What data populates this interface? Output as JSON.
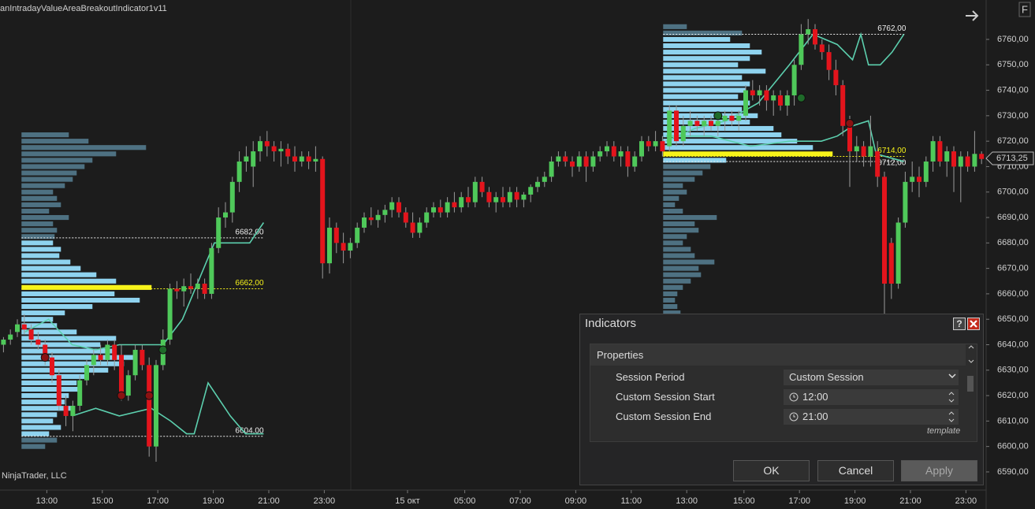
{
  "header": {
    "title": "anIntradayValueAreaBreakoutIndicator1v11",
    "watermark": "NinjaTrader, LLC",
    "corner": "F"
  },
  "chart": {
    "xlim": [
      -0.5,
      142
    ],
    "ylim": [
      6585,
      6770
    ],
    "yticks": [
      {
        "value": 6590,
        "label": "6590,00"
      },
      {
        "value": 6600,
        "label": "6600,00"
      },
      {
        "value": 6610,
        "label": "6610,00"
      },
      {
        "value": 6620,
        "label": "6620,00"
      },
      {
        "value": 6630,
        "label": "6630,00"
      },
      {
        "value": 6640,
        "label": "6640,00"
      },
      {
        "value": 6650,
        "label": "6650,00"
      },
      {
        "value": 6660,
        "label": "6660,00"
      },
      {
        "value": 6670,
        "label": "6670,00"
      },
      {
        "value": 6680,
        "label": "6680,00"
      },
      {
        "value": 6690,
        "label": "6690,00"
      },
      {
        "value": 6700,
        "label": "6700,00"
      },
      {
        "value": 6710,
        "label": "6710,00"
      },
      {
        "value": 6720,
        "label": "6720,00"
      },
      {
        "value": 6730,
        "label": "6730,00"
      },
      {
        "value": 6740,
        "label": "6740,00"
      },
      {
        "value": 6750,
        "label": "6750,00"
      },
      {
        "value": 6760,
        "label": "6760,00"
      }
    ],
    "xticks": [
      {
        "value": 6.25,
        "label": "13:00"
      },
      {
        "value": 14.25,
        "label": "15:00"
      },
      {
        "value": 22.25,
        "label": "17:00"
      },
      {
        "value": 30.25,
        "label": "19:00"
      },
      {
        "value": 38.25,
        "label": "21:00"
      },
      {
        "value": 46.25,
        "label": "23:00"
      },
      {
        "value": 58.25,
        "label": "15 окт"
      },
      {
        "value": 66.5,
        "label": "05:00"
      },
      {
        "value": 74.5,
        "label": "07:00"
      },
      {
        "value": 82.5,
        "label": "09:00"
      },
      {
        "value": 90.5,
        "label": "11:00"
      },
      {
        "value": 98.5,
        "label": "13:00"
      },
      {
        "value": 106.75,
        "label": "15:00"
      },
      {
        "value": 114.75,
        "label": "17:00"
      },
      {
        "value": 122.75,
        "label": "19:00"
      },
      {
        "value": 130.75,
        "label": "21:00"
      },
      {
        "value": 138.75,
        "label": "23:00"
      }
    ],
    "up_color": "#4fc95a",
    "down_color": "#e3141c",
    "candles": [
      [
        0,
        6640,
        6643,
        6637,
        6642
      ],
      [
        1,
        6642,
        6646,
        6640,
        6644
      ],
      [
        2,
        6645,
        6650,
        6643,
        6648
      ],
      [
        3,
        6648,
        6652,
        6644,
        6646
      ],
      [
        4,
        6646,
        6648,
        6640,
        6642
      ],
      [
        5,
        6642,
        6645,
        6638,
        6640
      ],
      [
        6,
        6640,
        6642,
        6632,
        6635
      ],
      [
        7,
        6635,
        6637,
        6625,
        6628
      ],
      [
        8,
        6628,
        6630,
        6614,
        6616
      ],
      [
        9,
        6616,
        6620,
        6608,
        6612
      ],
      [
        10,
        6612,
        6618,
        6606,
        6616
      ],
      [
        11,
        6616,
        6628,
        6614,
        6626
      ],
      [
        12,
        6626,
        6634,
        6624,
        6632
      ],
      [
        13,
        6632,
        6638,
        6628,
        6636
      ],
      [
        14,
        6636,
        6640,
        6632,
        6634
      ],
      [
        15,
        6634,
        6642,
        6632,
        6640
      ],
      [
        16,
        6640,
        6642,
        6630,
        6634
      ],
      [
        17,
        6636,
        6640,
        6618,
        6620
      ],
      [
        18,
        6620,
        6630,
        6618,
        6628
      ],
      [
        19,
        6628,
        6640,
        6626,
        6638
      ],
      [
        20,
        6638,
        6640,
        6630,
        6632
      ],
      [
        21,
        6632,
        6635,
        6596,
        6600
      ],
      [
        22,
        6600,
        6634,
        6594,
        6632
      ],
      [
        23,
        6632,
        6646,
        6630,
        6642
      ],
      [
        24,
        6642,
        6664,
        6640,
        6662
      ],
      [
        25,
        6662,
        6665,
        6658,
        6661
      ],
      [
        26,
        6661,
        6666,
        6655,
        6663
      ],
      [
        27,
        6663,
        6668,
        6660,
        6662
      ],
      [
        28,
        6662,
        6666,
        6658,
        6664
      ],
      [
        29,
        6664,
        6666,
        6658,
        6660
      ],
      [
        30,
        6660,
        6680,
        6658,
        6678
      ],
      [
        31,
        6678,
        6694,
        6676,
        6690
      ],
      [
        32,
        6690,
        6696,
        6686,
        6692
      ],
      [
        33,
        6692,
        6706,
        6688,
        6704
      ],
      [
        34,
        6704,
        6716,
        6700,
        6712
      ],
      [
        35,
        6712,
        6718,
        6708,
        6714
      ],
      [
        36,
        6710,
        6720,
        6702,
        6716
      ],
      [
        37,
        6716,
        6722,
        6712,
        6720
      ],
      [
        38,
        6720,
        6724,
        6714,
        6718
      ],
      [
        39,
        6718,
        6720,
        6712,
        6716
      ],
      [
        40,
        6716,
        6720,
        6710,
        6717
      ],
      [
        41,
        6717,
        6719,
        6711,
        6714
      ],
      [
        42,
        6714,
        6718,
        6708,
        6712
      ],
      [
        43,
        6712,
        6716,
        6710,
        6714
      ],
      [
        44,
        6714,
        6716,
        6709,
        6712
      ],
      [
        45,
        6712,
        6718,
        6708,
        6713
      ],
      [
        46,
        6713,
        6714,
        6666,
        6672
      ],
      [
        47,
        6672,
        6690,
        6668,
        6686
      ],
      [
        48,
        6686,
        6688,
        6676,
        6680
      ],
      [
        49,
        6680,
        6684,
        6672,
        6677
      ],
      [
        50,
        6677,
        6682,
        6674,
        6680
      ],
      [
        51,
        6680,
        6688,
        6678,
        6686
      ],
      [
        52,
        6686,
        6692,
        6684,
        6690
      ],
      [
        53,
        6690,
        6694,
        6687,
        6689
      ],
      [
        54,
        6689,
        6693,
        6686,
        6691
      ],
      [
        55,
        6691,
        6695,
        6688,
        6693
      ],
      [
        56,
        6693,
        6698,
        6690,
        6696
      ],
      [
        57,
        6696,
        6698,
        6690,
        6692
      ],
      [
        58,
        6692,
        6694,
        6686,
        6688
      ],
      [
        59,
        6688,
        6692,
        6682,
        6684
      ],
      [
        60,
        6684,
        6690,
        6682,
        6688
      ],
      [
        61,
        6688,
        6694,
        6686,
        6692
      ],
      [
        62,
        6692,
        6696,
        6690,
        6694
      ],
      [
        63,
        6694,
        6697,
        6690,
        6692
      ],
      [
        64,
        6692,
        6698,
        6690,
        6696
      ],
      [
        65,
        6696,
        6700,
        6692,
        6694
      ],
      [
        66,
        6694,
        6700,
        6692,
        6698
      ],
      [
        67,
        6698,
        6702,
        6694,
        6696
      ],
      [
        68,
        6696,
        6706,
        6694,
        6704
      ],
      [
        69,
        6704,
        6706,
        6698,
        6700
      ],
      [
        70,
        6700,
        6702,
        6694,
        6696
      ],
      [
        71,
        6696,
        6700,
        6692,
        6698
      ],
      [
        72,
        6698,
        6702,
        6694,
        6696
      ],
      [
        73,
        6696,
        6702,
        6694,
        6700
      ],
      [
        74,
        6700,
        6702,
        6694,
        6697
      ],
      [
        75,
        6697,
        6700,
        6694,
        6699
      ],
      [
        76,
        6699,
        6703,
        6696,
        6702
      ],
      [
        77,
        6702,
        6706,
        6700,
        6704
      ],
      [
        78,
        6704,
        6708,
        6702,
        6706
      ],
      [
        79,
        6706,
        6714,
        6704,
        6712
      ],
      [
        80,
        6712,
        6716,
        6710,
        6714
      ],
      [
        81,
        6714,
        6716,
        6710,
        6712
      ],
      [
        82,
        6712,
        6714,
        6706,
        6710
      ],
      [
        83,
        6710,
        6716,
        6708,
        6714
      ],
      [
        84,
        6714,
        6716,
        6704,
        6710
      ],
      [
        85,
        6710,
        6716,
        6708,
        6714
      ],
      [
        86,
        6714,
        6718,
        6712,
        6716
      ],
      [
        87,
        6716,
        6720,
        6714,
        6718
      ],
      [
        88,
        6718,
        6720,
        6712,
        6714
      ],
      [
        89,
        6714,
        6718,
        6710,
        6716
      ],
      [
        90,
        6716,
        6718,
        6706,
        6710
      ],
      [
        91,
        6710,
        6716,
        6708,
        6714
      ],
      [
        92,
        6714,
        6722,
        6712,
        6720
      ],
      [
        93,
        6720,
        6722,
        6716,
        6718
      ],
      [
        94,
        6718,
        6724,
        6716,
        6720
      ],
      [
        95,
        6720,
        6722,
        6714,
        6716
      ],
      [
        96,
        6718,
        6734,
        6716,
        6732
      ],
      [
        97,
        6732,
        6734,
        6718,
        6720
      ],
      [
        98,
        6720,
        6730,
        6718,
        6726
      ],
      [
        99,
        6726,
        6732,
        6722,
        6728
      ],
      [
        100,
        6728,
        6730,
        6724,
        6726
      ],
      [
        101,
        6726,
        6730,
        6722,
        6728
      ],
      [
        102,
        6728,
        6730,
        6724,
        6726
      ],
      [
        103,
        6726,
        6730,
        6722,
        6728
      ],
      [
        104,
        6728,
        6732,
        6724,
        6730
      ],
      [
        105,
        6730,
        6732,
        6726,
        6728
      ],
      [
        106,
        6728,
        6732,
        6724,
        6730
      ],
      [
        107,
        6730,
        6742,
        6728,
        6740
      ],
      [
        108,
        6740,
        6744,
        6736,
        6738
      ],
      [
        109,
        6738,
        6742,
        6734,
        6740
      ],
      [
        110,
        6740,
        6742,
        6732,
        6736
      ],
      [
        111,
        6736,
        6740,
        6730,
        6738
      ],
      [
        112,
        6738,
        6740,
        6732,
        6734
      ],
      [
        113,
        6734,
        6740,
        6730,
        6738
      ],
      [
        114,
        6738,
        6752,
        6734,
        6750
      ],
      [
        115,
        6750,
        6766,
        6748,
        6762
      ],
      [
        116,
        6762,
        6768,
        6758,
        6764
      ],
      [
        117,
        6764,
        6766,
        6756,
        6758
      ],
      [
        118,
        6758,
        6760,
        6752,
        6755
      ],
      [
        119,
        6755,
        6758,
        6744,
        6748
      ],
      [
        120,
        6748,
        6752,
        6738,
        6742
      ],
      [
        121,
        6742,
        6744,
        6722,
        6726
      ],
      [
        122,
        6726,
        6730,
        6702,
        6716
      ],
      [
        123,
        6716,
        6722,
        6712,
        6718
      ],
      [
        124,
        6718,
        6720,
        6710,
        6714
      ],
      [
        125,
        6714,
        6730,
        6710,
        6718
      ],
      [
        126,
        6716,
        6720,
        6702,
        6706
      ],
      [
        127,
        6706,
        6708,
        6652,
        6664
      ],
      [
        128,
        6680,
        6682,
        6658,
        6664
      ],
      [
        129,
        6664,
        6690,
        6662,
        6688
      ],
      [
        130,
        6688,
        6708,
        6686,
        6704
      ],
      [
        131,
        6704,
        6712,
        6700,
        6706
      ],
      [
        132,
        6706,
        6710,
        6698,
        6704
      ],
      [
        133,
        6704,
        6714,
        6702,
        6712
      ],
      [
        134,
        6712,
        6722,
        6708,
        6720
      ],
      [
        135,
        6720,
        6722,
        6710,
        6712
      ],
      [
        136,
        6712,
        6718,
        6706,
        6716
      ],
      [
        137,
        6716,
        6718,
        6700,
        6710
      ],
      [
        138,
        6710,
        6716,
        6696,
        6714
      ],
      [
        139,
        6714,
        6716,
        6708,
        6710
      ],
      [
        140,
        6710,
        6724,
        6708,
        6715
      ],
      [
        141,
        6715,
        6716,
        6711,
        6713
      ]
    ],
    "profiles": [
      {
        "x": 2.6,
        "end": 37.5,
        "top": 6722.5,
        "step": 2.5,
        "va_color": "#8fd3ef",
        "out_color": "#4e7182",
        "poc_color": "#f7f31a",
        "vah": {
          "value": 6682,
          "label": "6682,00"
        },
        "poc": {
          "value": 6662,
          "label": "6662,00"
        },
        "val": {
          "value": 6604,
          "label": "6604,00"
        },
        "volumes": [
          60,
          85,
          158,
          120,
          90,
          80,
          70,
          65,
          55,
          40,
          45,
          50,
          35,
          60,
          40,
          45,
          42,
          40,
          50,
          48,
          62,
          75,
          95,
          120,
          165,
          118,
          150,
          90,
          55,
          40,
          45,
          70,
          120,
          100,
          120,
          145,
          130,
          110,
          80,
          70,
          75,
          60,
          55,
          65,
          45,
          40,
          50,
          35,
          45,
          30
        ]
      },
      {
        "x": 95.1,
        "end": 130.1,
        "top": 6765,
        "step": 2.5,
        "va_color": "#8fd3ef",
        "out_color": "#4e7182",
        "poc_color": "#f7f31a",
        "vah": {
          "value": 6762,
          "label": "6762,00"
        },
        "poc": {
          "value": 6714,
          "label": "6714,00"
        },
        "val": {
          "value": 6712,
          "label": "6712,00"
        },
        "volumes": [
          30,
          100,
          85,
          110,
          125,
          110,
          95,
          130,
          100,
          110,
          105,
          95,
          110,
          100,
          120,
          110,
          140,
          150,
          170,
          190,
          215,
          80,
          60,
          50,
          40,
          25,
          30,
          20,
          15,
          25,
          68,
          40,
          45,
          30,
          25,
          35,
          40,
          65,
          45,
          48,
          35,
          25,
          18,
          15,
          18,
          22,
          20
        ]
      }
    ],
    "lines": [
      {
        "color": "#5ccfae",
        "x": [
          3.1,
          6.5,
          9.9,
          13.3,
          16.7,
          20.2,
          23,
          25.8,
          28.1,
          30.4,
          35.5,
          37.5
        ],
        "values": [
          6645,
          6650,
          6640,
          6638,
          6640,
          6640,
          6640,
          6650,
          6665,
          6680,
          6680,
          6688
        ]
      },
      {
        "color": "#5ccfae",
        "x": [
          9.9,
          13.3,
          16.7,
          21.3,
          24.1,
          26.4,
          27.5,
          29.5,
          32.7,
          34.9,
          37.5
        ],
        "values": [
          6612,
          6615,
          6612,
          6615,
          6610,
          6605,
          6605,
          6625,
          6612,
          6605,
          6605
        ]
      },
      {
        "color": "#5ccfae",
        "x": [
          95.5,
          99.7,
          104.2,
          108.8,
          113.3,
          116.7,
          120.2,
          122.4,
          123.6,
          124.7,
          126.4,
          128.1,
          129.8
        ],
        "values": [
          6720,
          6725,
          6728,
          6735,
          6750,
          6762,
          6758,
          6752,
          6762,
          6750,
          6750,
          6755,
          6762
        ]
      },
      {
        "color": "#5ccfae",
        "x": [
          95.5,
          102,
          107.7,
          113.3,
          117.9,
          120.2,
          122.4,
          124.7,
          125.8,
          129.8
        ],
        "values": [
          6722,
          6722,
          6718,
          6720,
          6720,
          6722,
          6726,
          6728,
          6715,
          6712
        ]
      }
    ],
    "markers": [
      {
        "x": 6,
        "value": 6635,
        "color": "#8a1212"
      },
      {
        "x": 17,
        "value": 6620,
        "color": "#8a1212"
      },
      {
        "x": 21,
        "value": 6620,
        "color": "#8a1212"
      },
      {
        "x": 122,
        "value": 6727,
        "color": "#8a1212"
      },
      {
        "x": 23,
        "value": 6638,
        "color": "#1f6b2a"
      },
      {
        "x": 103,
        "value": 6730,
        "color": "#1f6b2a"
      },
      {
        "x": 115,
        "value": 6737,
        "color": "#1f6b2a"
      }
    ],
    "last_price": {
      "value": 6713.25,
      "label": "6713,25"
    }
  },
  "dialog": {
    "title": "Indicators",
    "help": "?",
    "section": "Properties",
    "rows": [
      [
        "Session Period",
        "Custom Session"
      ],
      [
        "Custom Session Start",
        "12:00"
      ],
      [
        "Custom Session End",
        "21:00"
      ]
    ],
    "hint": "template",
    "buttons": [
      "OK",
      "Cancel",
      "Apply"
    ]
  }
}
